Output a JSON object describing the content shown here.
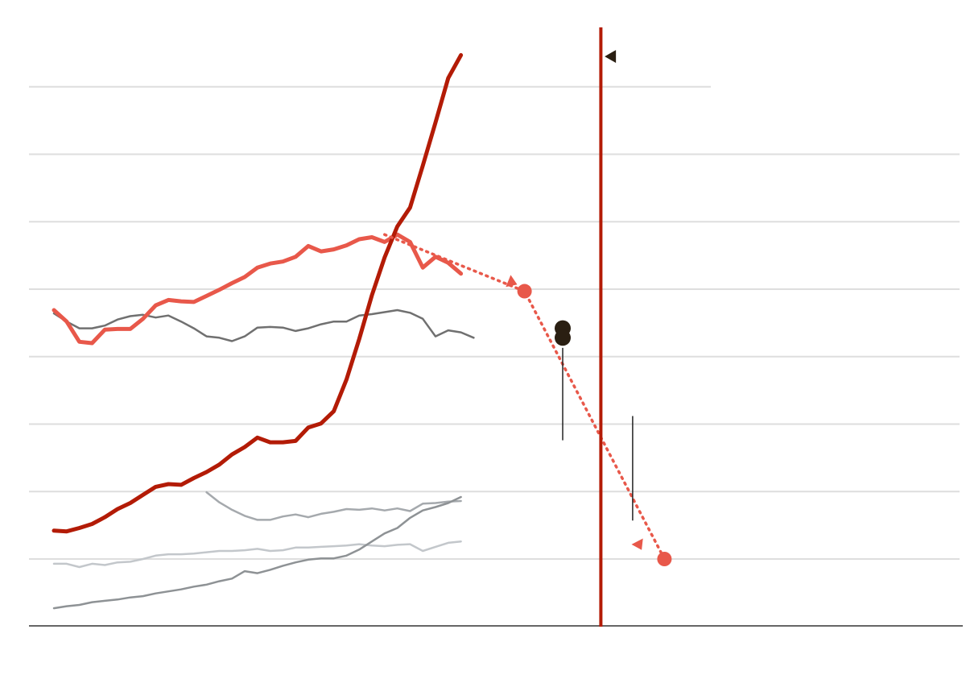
{
  "chart_data": {
    "type": "line",
    "title": "",
    "xlabel": "",
    "ylabel": "",
    "x_range": [
      2000,
      2050
    ],
    "y_range": [
      -100,
      800
    ],
    "grid": true,
    "gridlines_y": [
      0,
      100,
      200,
      300,
      400,
      500,
      600,
      700
    ],
    "series": [
      {
        "role": "sharp-rise",
        "color": "#b31b06",
        "points": [
          [
            2000,
            42
          ],
          [
            2001,
            41
          ],
          [
            2002,
            46
          ],
          [
            2003,
            52
          ],
          [
            2004,
            62
          ],
          [
            2005,
            74
          ],
          [
            2006,
            83
          ],
          [
            2007,
            95
          ],
          [
            2008,
            107
          ],
          [
            2009,
            111
          ],
          [
            2010,
            110
          ],
          [
            2011,
            120
          ],
          [
            2012,
            129
          ],
          [
            2013,
            140
          ],
          [
            2014,
            155
          ],
          [
            2015,
            166
          ],
          [
            2016,
            180
          ],
          [
            2017,
            173
          ],
          [
            2018,
            173
          ],
          [
            2019,
            175
          ],
          [
            2020,
            195
          ],
          [
            2021,
            201
          ],
          [
            2022,
            219
          ],
          [
            2023,
            266
          ],
          [
            2024,
            326
          ],
          [
            2025,
            391
          ],
          [
            2026,
            447
          ],
          [
            2027,
            493
          ],
          [
            2028,
            521
          ],
          [
            2029,
            583
          ],
          [
            2030,
            647
          ],
          [
            2031,
            713
          ],
          [
            2032,
            747
          ]
        ]
      },
      {
        "role": "main-rising-then-falling",
        "color": "#e8584a",
        "points": [
          [
            2000,
            369
          ],
          [
            2001,
            352
          ],
          [
            2002,
            322
          ],
          [
            2003,
            320
          ],
          [
            2004,
            340
          ],
          [
            2005,
            341
          ],
          [
            2006,
            341
          ],
          [
            2007,
            356
          ],
          [
            2008,
            376
          ],
          [
            2009,
            384
          ],
          [
            2010,
            382
          ],
          [
            2011,
            381
          ],
          [
            2012,
            390
          ],
          [
            2013,
            399
          ],
          [
            2014,
            409
          ],
          [
            2015,
            418
          ],
          [
            2016,
            432
          ],
          [
            2017,
            438
          ],
          [
            2018,
            441
          ],
          [
            2019,
            448
          ],
          [
            2020,
            464
          ],
          [
            2021,
            456
          ],
          [
            2022,
            459
          ],
          [
            2023,
            465
          ],
          [
            2024,
            474
          ],
          [
            2025,
            477
          ],
          [
            2026,
            470
          ],
          [
            2027,
            481
          ],
          [
            2028,
            470
          ],
          [
            2029,
            432
          ],
          [
            2030,
            448
          ],
          [
            2031,
            439
          ],
          [
            2032,
            423
          ]
        ]
      },
      {
        "role": "dark-grey",
        "color": "#707070",
        "points": [
          [
            2000,
            364
          ],
          [
            2001,
            352
          ],
          [
            2002,
            342
          ],
          [
            2003,
            342
          ],
          [
            2004,
            346
          ],
          [
            2005,
            355
          ],
          [
            2006,
            360
          ],
          [
            2007,
            362
          ],
          [
            2008,
            358
          ],
          [
            2009,
            361
          ],
          [
            2010,
            352
          ],
          [
            2011,
            342
          ],
          [
            2012,
            330
          ],
          [
            2013,
            328
          ],
          [
            2014,
            323
          ],
          [
            2015,
            330
          ],
          [
            2016,
            343
          ],
          [
            2017,
            344
          ],
          [
            2018,
            343
          ],
          [
            2019,
            338
          ],
          [
            2020,
            342
          ],
          [
            2021,
            348
          ],
          [
            2022,
            352
          ],
          [
            2023,
            352
          ],
          [
            2024,
            361
          ],
          [
            2025,
            363
          ],
          [
            2026,
            366
          ],
          [
            2027,
            369
          ],
          [
            2028,
            365
          ],
          [
            2029,
            356
          ],
          [
            2030,
            330
          ],
          [
            2031,
            339
          ],
          [
            2032,
            336
          ],
          [
            2033,
            328
          ]
        ]
      },
      {
        "role": "mid-grey-short",
        "color": "#a5a9ad",
        "points": [
          [
            2012,
            99
          ],
          [
            2013,
            84
          ],
          [
            2014,
            73
          ],
          [
            2015,
            64
          ],
          [
            2016,
            58
          ],
          [
            2017,
            58
          ],
          [
            2018,
            63
          ],
          [
            2019,
            66
          ],
          [
            2020,
            62
          ],
          [
            2021,
            67
          ],
          [
            2022,
            70
          ],
          [
            2023,
            74
          ],
          [
            2024,
            73
          ],
          [
            2025,
            75
          ],
          [
            2026,
            72
          ],
          [
            2027,
            75
          ],
          [
            2028,
            71
          ],
          [
            2029,
            82
          ],
          [
            2030,
            83
          ],
          [
            2031,
            85
          ],
          [
            2032,
            86
          ]
        ]
      },
      {
        "role": "light-grey",
        "color": "#c3c7cb",
        "points": [
          [
            2000,
            -7
          ],
          [
            2001,
            -7
          ],
          [
            2002,
            -12
          ],
          [
            2003,
            -7
          ],
          [
            2004,
            -9
          ],
          [
            2005,
            -5
          ],
          [
            2006,
            -4
          ],
          [
            2007,
            0
          ],
          [
            2008,
            5
          ],
          [
            2009,
            7
          ],
          [
            2010,
            7
          ],
          [
            2011,
            8
          ],
          [
            2012,
            10
          ],
          [
            2013,
            12
          ],
          [
            2014,
            12
          ],
          [
            2015,
            13
          ],
          [
            2016,
            15
          ],
          [
            2017,
            12
          ],
          [
            2018,
            13
          ],
          [
            2019,
            17
          ],
          [
            2020,
            17
          ],
          [
            2021,
            18
          ],
          [
            2022,
            19
          ],
          [
            2023,
            20
          ],
          [
            2024,
            22
          ],
          [
            2025,
            20
          ],
          [
            2026,
            19
          ],
          [
            2027,
            21
          ],
          [
            2028,
            22
          ],
          [
            2029,
            12
          ],
          [
            2030,
            18
          ],
          [
            2031,
            24
          ],
          [
            2032,
            26
          ]
        ]
      },
      {
        "role": "grey-rising",
        "color": "#8e9295",
        "points": [
          [
            2000,
            -73
          ],
          [
            2001,
            -70
          ],
          [
            2002,
            -68
          ],
          [
            2003,
            -64
          ],
          [
            2004,
            -62
          ],
          [
            2005,
            -60
          ],
          [
            2006,
            -57
          ],
          [
            2007,
            -55
          ],
          [
            2008,
            -51
          ],
          [
            2009,
            -48
          ],
          [
            2010,
            -45
          ],
          [
            2011,
            -41
          ],
          [
            2012,
            -38
          ],
          [
            2013,
            -33
          ],
          [
            2014,
            -29
          ],
          [
            2015,
            -18
          ],
          [
            2016,
            -21
          ],
          [
            2017,
            -16
          ],
          [
            2018,
            -10
          ],
          [
            2019,
            -5
          ],
          [
            2020,
            -1
          ],
          [
            2021,
            1
          ],
          [
            2022,
            1
          ],
          [
            2023,
            5
          ],
          [
            2024,
            14
          ],
          [
            2025,
            26
          ],
          [
            2026,
            38
          ],
          [
            2027,
            46
          ],
          [
            2028,
            61
          ],
          [
            2029,
            72
          ],
          [
            2030,
            77
          ],
          [
            2031,
            83
          ],
          [
            2032,
            92
          ]
        ]
      }
    ],
    "projection": {
      "color": "#e8584a",
      "points": [
        [
          2026,
          481
        ],
        [
          2037,
          397
        ],
        [
          2048,
          0
        ]
      ],
      "arrow_points": [
        [
          2036,
          410
        ],
        [
          2046,
          21
        ]
      ],
      "dot_points": [
        [
          2037,
          397
        ],
        [
          2048,
          0
        ]
      ]
    },
    "markers": [
      {
        "x": 2040,
        "y": 342,
        "color": "#2a1f12"
      },
      {
        "x": 2040,
        "y": 328,
        "color": "#2a1f12"
      }
    ],
    "leader_lines": [
      {
        "x": 2040,
        "y_from": 313,
        "y_to": 176
      },
      {
        "x": 2045.5,
        "y_from": 212,
        "y_to": 57
      }
    ],
    "reference_line": {
      "x": 2043,
      "color": "#b31b06"
    },
    "flag_marker": {
      "x": 2043.3,
      "y": 745,
      "color": "#2a1f12"
    }
  }
}
